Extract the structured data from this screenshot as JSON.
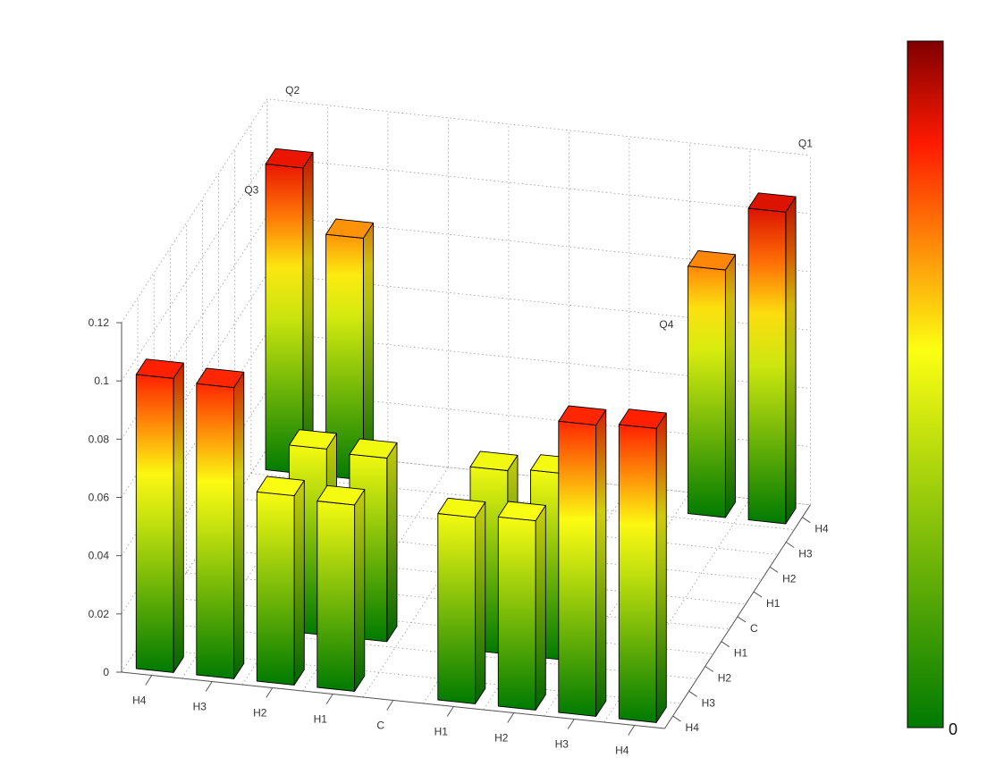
{
  "chart_data": {
    "type": "bar3d",
    "title": "",
    "x_categories": [
      "H4",
      "H3",
      "H2",
      "H1",
      "C",
      "H1",
      "H2",
      "H3",
      "H4"
    ],
    "y_categories": [
      "H4",
      "H3",
      "H2",
      "H1",
      "C",
      "H1",
      "H2",
      "H3",
      "H4"
    ],
    "zticks": [
      "0",
      "0.02",
      "0.04",
      "0.06",
      "0.08",
      "0.1",
      "0.12"
    ],
    "zlim": [
      0,
      0.12
    ],
    "grid": true,
    "corner_labels": [
      "Q1",
      "Q2",
      "Q3",
      "Q4"
    ],
    "bars": [
      {
        "x": 0,
        "y": 0,
        "z": 0.101
      },
      {
        "x": 1,
        "y": 0,
        "z": 0.1
      },
      {
        "x": 2,
        "y": 0,
        "z": 0.065
      },
      {
        "x": 3,
        "y": 0,
        "z": 0.064
      },
      {
        "x": 5,
        "y": 0,
        "z": 0.064
      },
      {
        "x": 6,
        "y": 0,
        "z": 0.065
      },
      {
        "x": 7,
        "y": 0,
        "z": 0.1
      },
      {
        "x": 8,
        "y": 0,
        "z": 0.101
      },
      {
        "x": 2,
        "y": 2,
        "z": 0.064
      },
      {
        "x": 3,
        "y": 2,
        "z": 0.063
      },
      {
        "x": 5,
        "y": 2,
        "z": 0.063
      },
      {
        "x": 6,
        "y": 2,
        "z": 0.064
      },
      {
        "x": 0,
        "y": 8,
        "z": 0.105
      },
      {
        "x": 1,
        "y": 8,
        "z": 0.083
      },
      {
        "x": 7,
        "y": 8,
        "z": 0.085
      },
      {
        "x": 8,
        "y": 8,
        "z": 0.107
      }
    ]
  },
  "colorbar": {
    "min_label": "0",
    "colors": [
      "#007a00",
      "#fcff12",
      "#ff1a00",
      "#800000"
    ]
  }
}
